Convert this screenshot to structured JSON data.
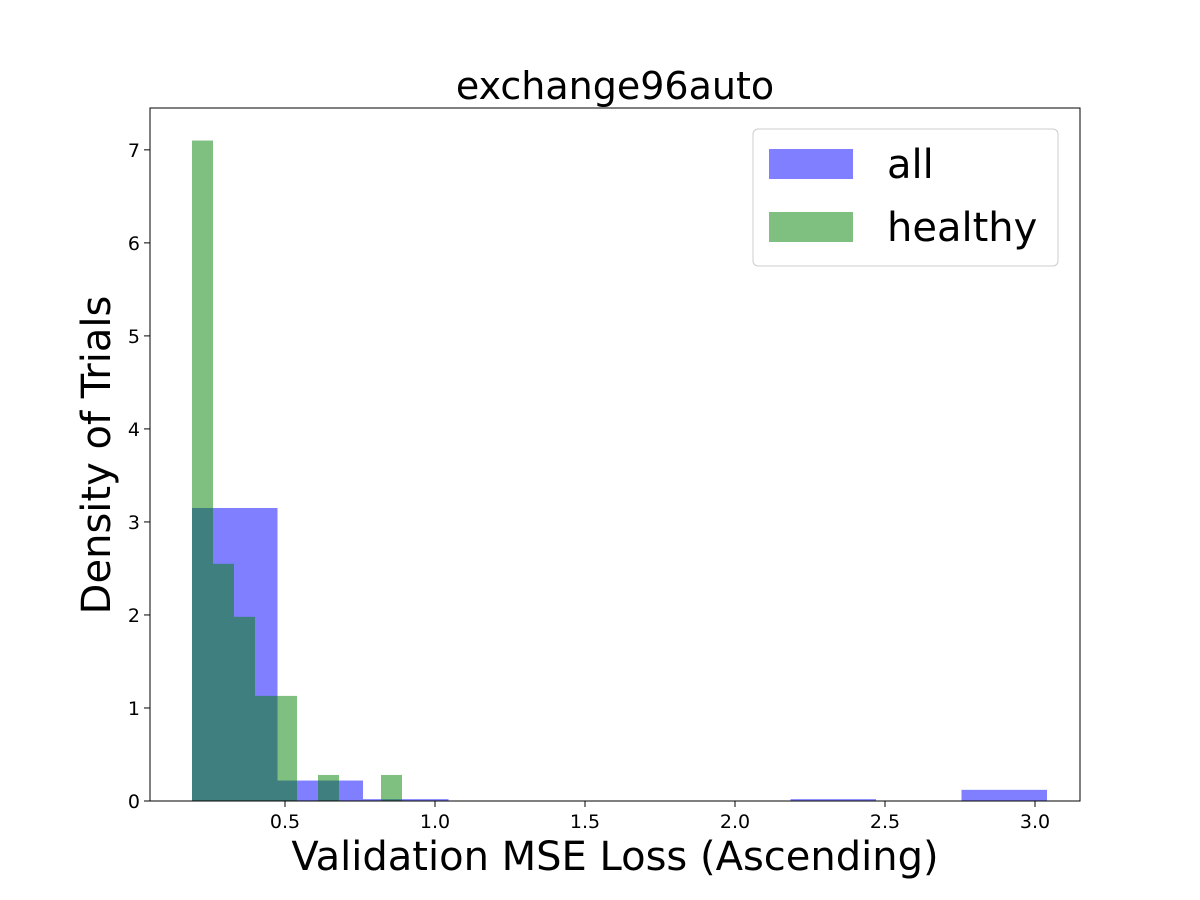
{
  "chart_data": {
    "type": "histogram",
    "title": "exchange96auto",
    "xlabel": "Validation MSE Loss (Ascending)",
    "ylabel": "Density of Trials",
    "xlim": [
      0.05,
      3.15
    ],
    "ylim": [
      0,
      7.45
    ],
    "xticks": [
      0.5,
      1.0,
      1.5,
      2.0,
      2.5,
      3.0
    ],
    "xtick_labels": [
      "0.5",
      "1.0",
      "1.5",
      "2.0",
      "2.5",
      "3.0"
    ],
    "yticks": [
      0,
      1,
      2,
      3,
      4,
      5,
      6,
      7
    ],
    "ytick_labels": [
      "0",
      "1",
      "2",
      "3",
      "4",
      "5",
      "6",
      "7"
    ],
    "grid": false,
    "legend_position": "top-right",
    "series": [
      {
        "name": "all",
        "color": "#0000ff",
        "opacity": 0.5,
        "bins": [
          {
            "x0": 0.19,
            "x1": 0.475,
            "y": 3.15
          },
          {
            "x0": 0.475,
            "x1": 0.76,
            "y": 0.22
          },
          {
            "x0": 0.76,
            "x1": 1.045,
            "y": 0.02
          },
          {
            "x0": 1.045,
            "x1": 1.33,
            "y": 0.0
          },
          {
            "x0": 1.33,
            "x1": 1.615,
            "y": 0.0
          },
          {
            "x0": 1.615,
            "x1": 1.9,
            "y": 0.0
          },
          {
            "x0": 1.9,
            "x1": 2.185,
            "y": 0.0
          },
          {
            "x0": 2.185,
            "x1": 2.47,
            "y": 0.02
          },
          {
            "x0": 2.47,
            "x1": 2.755,
            "y": 0.0
          },
          {
            "x0": 2.755,
            "x1": 3.04,
            "y": 0.12
          }
        ]
      },
      {
        "name": "healthy",
        "color": "#008000",
        "opacity": 0.5,
        "bins": [
          {
            "x0": 0.19,
            "x1": 0.26,
            "y": 7.1
          },
          {
            "x0": 0.26,
            "x1": 0.33,
            "y": 2.55
          },
          {
            "x0": 0.33,
            "x1": 0.4,
            "y": 1.98
          },
          {
            "x0": 0.4,
            "x1": 0.47,
            "y": 1.13
          },
          {
            "x0": 0.47,
            "x1": 0.54,
            "y": 1.13
          },
          {
            "x0": 0.54,
            "x1": 0.61,
            "y": 0.0
          },
          {
            "x0": 0.61,
            "x1": 0.68,
            "y": 0.28
          },
          {
            "x0": 0.68,
            "x1": 0.75,
            "y": 0.0
          },
          {
            "x0": 0.75,
            "x1": 0.82,
            "y": 0.0
          },
          {
            "x0": 0.82,
            "x1": 0.89,
            "y": 0.28
          }
        ]
      }
    ]
  }
}
